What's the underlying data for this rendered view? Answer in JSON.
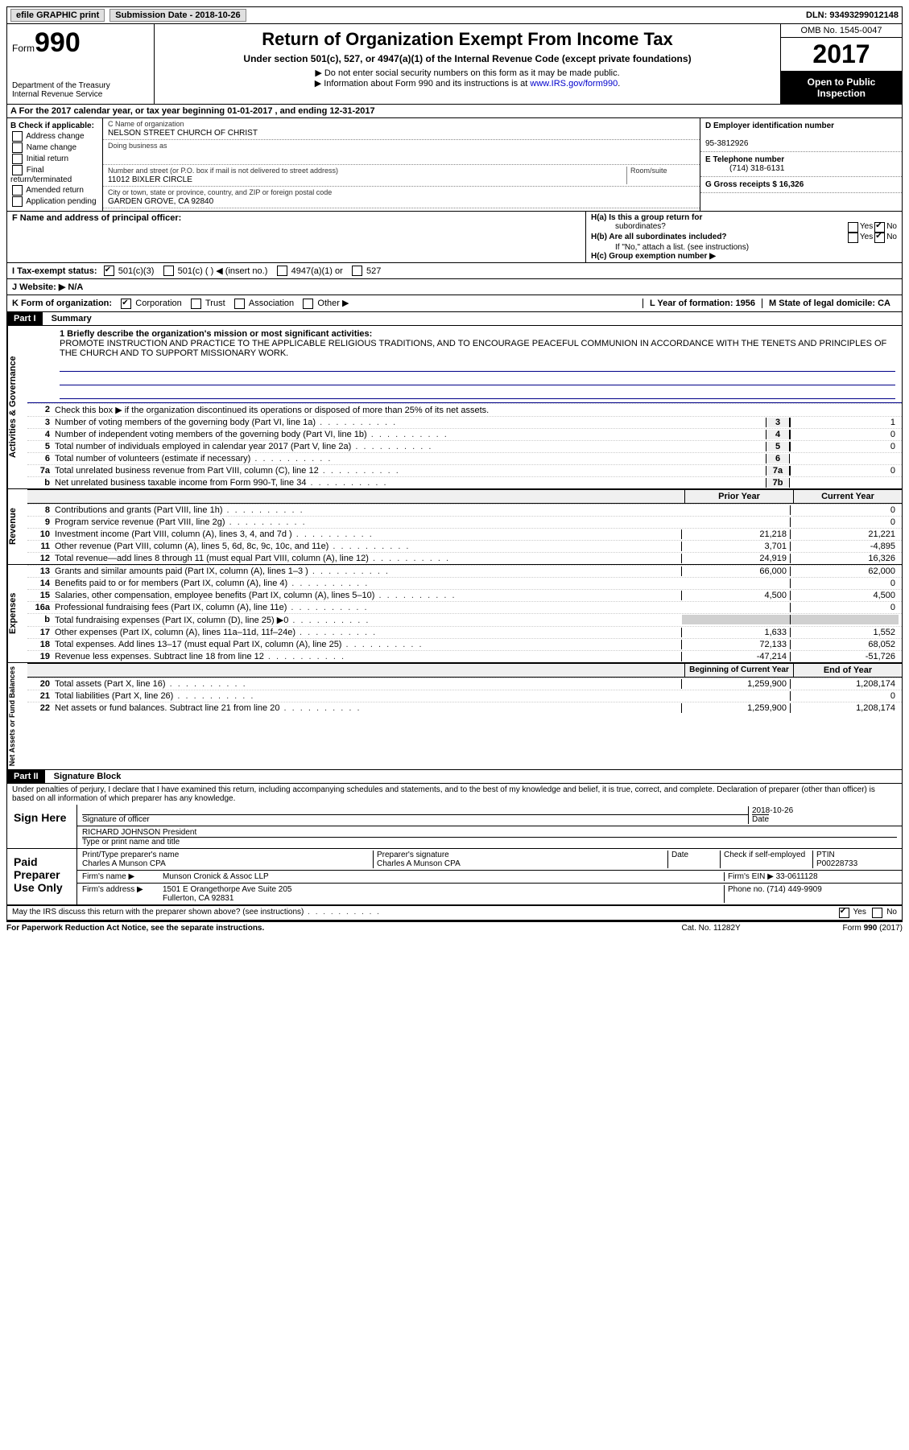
{
  "topbar": {
    "efile": "efile GRAPHIC print",
    "submission_label": "Submission Date - 2018-10-26",
    "dln": "DLN: 93493299012148"
  },
  "header": {
    "form_prefix": "Form",
    "form_number": "990",
    "dept": "Department of the Treasury",
    "irs": "Internal Revenue Service",
    "title": "Return of Organization Exempt From Income Tax",
    "subtitle": "Under section 501(c), 527, or 4947(a)(1) of the Internal Revenue Code (except private foundations)",
    "note1": "▶ Do not enter social security numbers on this form as it may be made public.",
    "note2_pre": "▶ Information about Form 990 and its instructions is at ",
    "note2_link": "www.IRS.gov/form990",
    "omb": "OMB No. 1545-0047",
    "year": "2017",
    "open1": "Open to Public",
    "open2": "Inspection"
  },
  "rowA": "A   For the 2017 calendar year, or tax year beginning 01-01-2017   , and ending 12-31-2017",
  "boxB": {
    "title": "B Check if applicable:",
    "items": [
      "Address change",
      "Name change",
      "Initial return",
      "Final return/terminated",
      "Amended return",
      "Application pending"
    ]
  },
  "boxC": {
    "name_label": "C Name of organization",
    "name": "NELSON STREET CHURCH OF CHRIST",
    "dba_label": "Doing business as",
    "dba": "",
    "street_label": "Number and street (or P.O. box if mail is not delivered to street address)",
    "room_label": "Room/suite",
    "street": "11012 BIXLER CIRCLE",
    "city_label": "City or town, state or province, country, and ZIP or foreign postal code",
    "city": "GARDEN GROVE, CA  92840"
  },
  "boxD": {
    "ein_label": "D Employer identification number",
    "ein": "95-3812926",
    "phone_label": "E Telephone number",
    "phone": "(714) 318-6131",
    "gross_label": "G Gross receipts $ 16,326"
  },
  "rowF": "F  Name and address of principal officer:",
  "boxH": {
    "a": "H(a)  Is this a group return for",
    "a2": "subordinates?",
    "b": "H(b)  Are all subordinates included?",
    "b_note": "If \"No,\" attach a list. (see instructions)",
    "c": "H(c)  Group exemption number ▶"
  },
  "rowI": {
    "label": "I  Tax-exempt status:",
    "o1": "501(c)(3)",
    "o2": "501(c) (  ) ◀ (insert no.)",
    "o3": "4947(a)(1) or",
    "o4": "527"
  },
  "rowJ": "J  Website: ▶  N/A",
  "rowK": {
    "label": "K Form of organization:",
    "o1": "Corporation",
    "o2": "Trust",
    "o3": "Association",
    "o4": "Other ▶",
    "L": "L Year of formation: 1956",
    "M": "M State of legal domicile: CA"
  },
  "part1": {
    "header": "Part I",
    "title": "Summary",
    "mission_label": "1   Briefly describe the organization's mission or most significant activities:",
    "mission": "PROMOTE INSTRUCTION AND PRACTICE TO THE APPLICABLE RELIGIOUS TRADITIONS, AND TO ENCOURAGE PEACEFUL COMMUNION IN ACCORDANCE WITH THE TENETS AND PRINCIPLES OF THE CHURCH AND TO SUPPORT MISSIONARY WORK.",
    "line2": "Check this box ▶       if the organization discontinued its operations or disposed of more than 25% of its net assets.",
    "side_ag": "Activities & Governance",
    "side_rev": "Revenue",
    "side_exp": "Expenses",
    "side_net": "Net Assets or Fund Balances",
    "prior": "Prior Year",
    "current": "Current Year",
    "boy": "Beginning of Current Year",
    "eoy": "End of Year",
    "lines_gov": [
      {
        "n": "3",
        "d": "Number of voting members of the governing body (Part VI, line 1a)",
        "b": "3",
        "v": "1"
      },
      {
        "n": "4",
        "d": "Number of independent voting members of the governing body (Part VI, line 1b)",
        "b": "4",
        "v": "0"
      },
      {
        "n": "5",
        "d": "Total number of individuals employed in calendar year 2017 (Part V, line 2a)",
        "b": "5",
        "v": "0"
      },
      {
        "n": "6",
        "d": "Total number of volunteers (estimate if necessary)",
        "b": "6",
        "v": ""
      },
      {
        "n": "7a",
        "d": "Total unrelated business revenue from Part VIII, column (C), line 12",
        "b": "7a",
        "v": "0"
      },
      {
        "n": "b",
        "d": "Net unrelated business taxable income from Form 990-T, line 34",
        "b": "7b",
        "v": ""
      }
    ],
    "lines_rev": [
      {
        "n": "8",
        "d": "Contributions and grants (Part VIII, line 1h)",
        "p": "",
        "c": "0"
      },
      {
        "n": "9",
        "d": "Program service revenue (Part VIII, line 2g)",
        "p": "",
        "c": "0"
      },
      {
        "n": "10",
        "d": "Investment income (Part VIII, column (A), lines 3, 4, and 7d )",
        "p": "21,218",
        "c": "21,221"
      },
      {
        "n": "11",
        "d": "Other revenue (Part VIII, column (A), lines 5, 6d, 8c, 9c, 10c, and 11e)",
        "p": "3,701",
        "c": "-4,895"
      },
      {
        "n": "12",
        "d": "Total revenue—add lines 8 through 11 (must equal Part VIII, column (A), line 12)",
        "p": "24,919",
        "c": "16,326"
      }
    ],
    "lines_exp": [
      {
        "n": "13",
        "d": "Grants and similar amounts paid (Part IX, column (A), lines 1–3 )",
        "p": "66,000",
        "c": "62,000"
      },
      {
        "n": "14",
        "d": "Benefits paid to or for members (Part IX, column (A), line 4)",
        "p": "",
        "c": "0"
      },
      {
        "n": "15",
        "d": "Salaries, other compensation, employee benefits (Part IX, column (A), lines 5–10)",
        "p": "4,500",
        "c": "4,500"
      },
      {
        "n": "16a",
        "d": "Professional fundraising fees (Part IX, column (A), line 11e)",
        "p": "",
        "c": "0"
      },
      {
        "n": "b",
        "d": "Total fundraising expenses (Part IX, column (D), line 25) ▶0",
        "p": "shade",
        "c": "shade"
      },
      {
        "n": "17",
        "d": "Other expenses (Part IX, column (A), lines 11a–11d, 11f–24e)",
        "p": "1,633",
        "c": "1,552"
      },
      {
        "n": "18",
        "d": "Total expenses. Add lines 13–17 (must equal Part IX, column (A), line 25)",
        "p": "72,133",
        "c": "68,052"
      },
      {
        "n": "19",
        "d": "Revenue less expenses. Subtract line 18 from line 12",
        "p": "-47,214",
        "c": "-51,726"
      }
    ],
    "lines_net": [
      {
        "n": "20",
        "d": "Total assets (Part X, line 16)",
        "p": "1,259,900",
        "c": "1,208,174"
      },
      {
        "n": "21",
        "d": "Total liabilities (Part X, line 26)",
        "p": "",
        "c": "0"
      },
      {
        "n": "22",
        "d": "Net assets or fund balances. Subtract line 21 from line 20",
        "p": "1,259,900",
        "c": "1,208,174"
      }
    ]
  },
  "part2": {
    "header": "Part II",
    "title": "Signature Block",
    "decl": "Under penalties of perjury, I declare that I have examined this return, including accompanying schedules and statements, and to the best of my knowledge and belief, it is true, correct, and complete. Declaration of preparer (other than officer) is based on all information of which preparer has any knowledge.",
    "sign_here": "Sign Here",
    "sig_officer": "Signature of officer",
    "date": "Date",
    "sig_date": "2018-10-26",
    "officer_name": "RICHARD JOHNSON President",
    "type_name": "Type or print name and title",
    "paid": "Paid Preparer Use Only",
    "prep_name_label": "Print/Type preparer's name",
    "prep_name": "Charles A Munson CPA",
    "prep_sig_label": "Preparer's signature",
    "prep_sig": "Charles A Munson CPA",
    "prep_date_label": "Date",
    "check_self": "Check       if self-employed",
    "ptin_label": "PTIN",
    "ptin": "P00228733",
    "firm_name_label": "Firm's name    ▶",
    "firm_name": "Munson Cronick & Assoc LLP",
    "firm_ein_label": "Firm's EIN ▶",
    "firm_ein": "33-0611128",
    "firm_addr_label": "Firm's address ▶",
    "firm_addr": "1501 E Orangethorpe Ave Suite 205",
    "firm_city": "Fullerton, CA  92831",
    "firm_phone_label": "Phone no.",
    "firm_phone": "(714) 449-9909",
    "discuss": "May the IRS discuss this return with the preparer shown above? (see instructions)",
    "yes": "Yes",
    "no": "No"
  },
  "footer": {
    "pra": "For Paperwork Reduction Act Notice, see the separate instructions.",
    "cat": "Cat. No. 11282Y",
    "form": "Form 990 (2017)"
  }
}
